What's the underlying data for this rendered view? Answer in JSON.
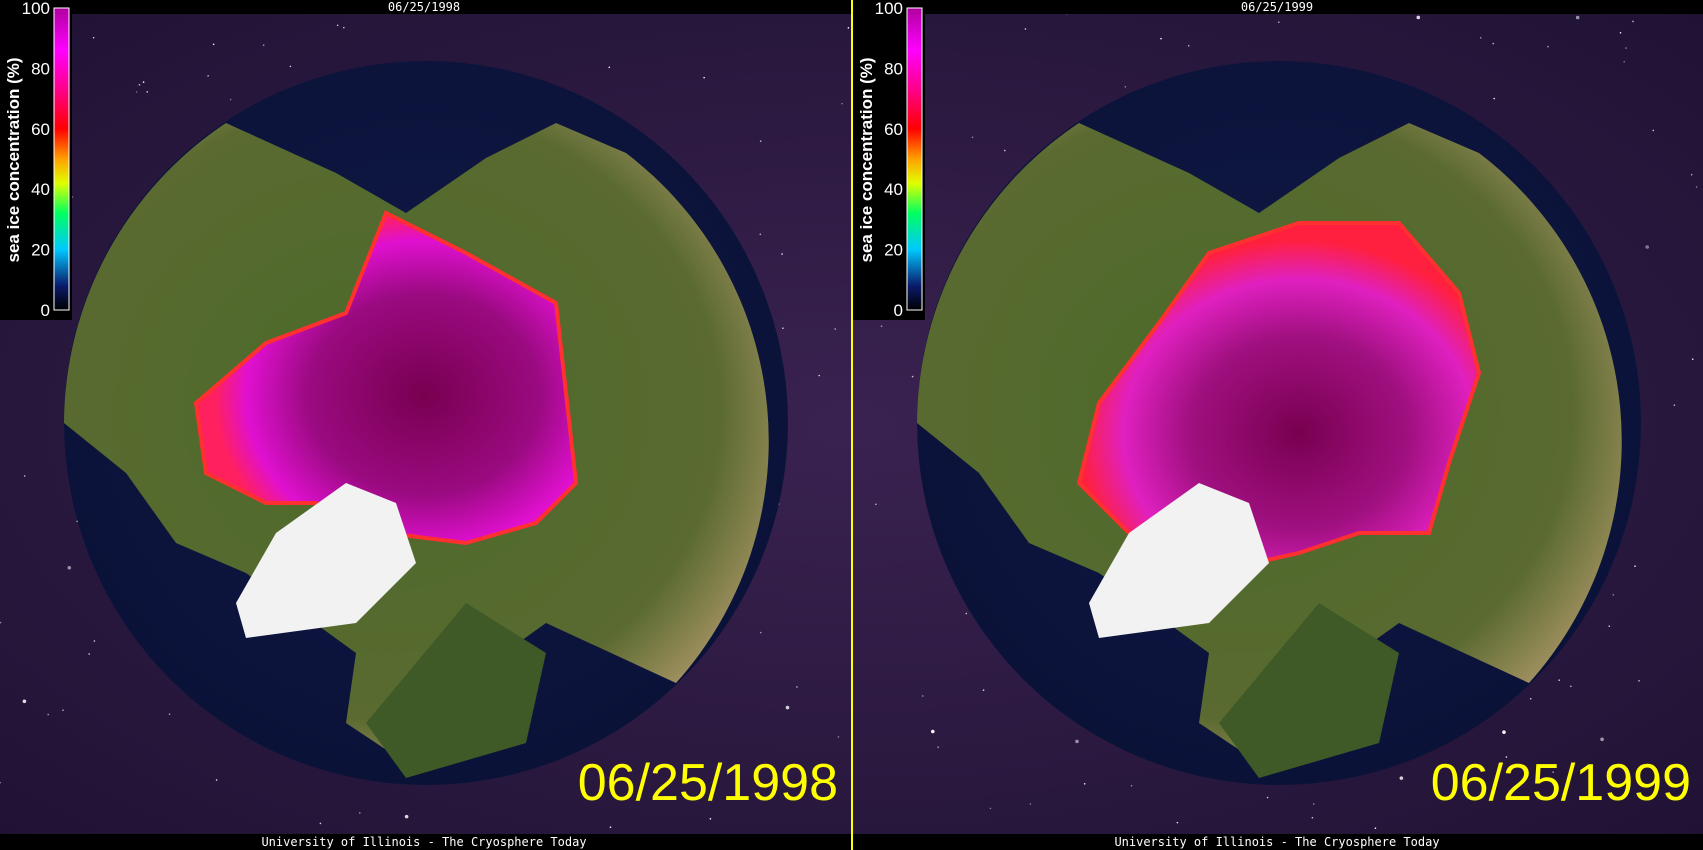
{
  "panels": [
    {
      "header_date": "06/25/1998",
      "colorbar": {
        "label": "sea ice concentration (%)",
        "ticks": [
          0,
          20,
          40,
          60,
          80,
          100
        ]
      },
      "date_label": "06/25/1998",
      "footer": "University of Illinois - The Cryosphere Today"
    },
    {
      "header_date": "06/25/1999",
      "colorbar": {
        "label": "sea ice concentration (%)",
        "ticks": [
          0,
          20,
          40,
          60,
          80,
          100
        ]
      },
      "date_label": "06/25/1999",
      "footer": "University of Illinois - The Cryosphere Today"
    }
  ]
}
